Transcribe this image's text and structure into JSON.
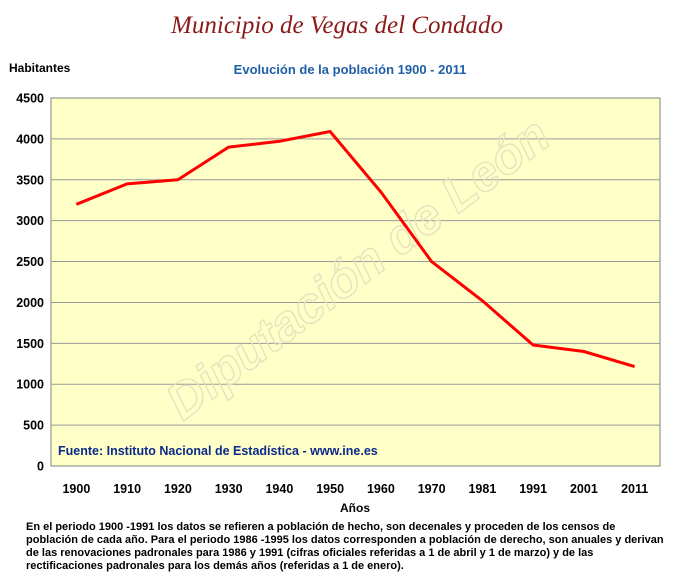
{
  "page_title": "Municipio de Vegas del Condado",
  "watermark": "Diputación de León",
  "footnote": "En el periodo 1900 -1991 los datos se refieren a población de hecho, son decenales y proceden de los censos de población de cada año. Para el periodo 1986 -1995 los datos corresponden a población de derecho, son anuales y derivan de las renovaciones padronales para 1986 y 1991 (cifras oficiales referidas a 1 de abril y 1 de marzo) y de las rectificaciones padronales para los demás años (referidas a 1 de enero).",
  "chart_data": {
    "type": "line",
    "title": "Evolución de la población 1900 - 2011",
    "xlabel": "Años",
    "ylabel": "Habitantes",
    "categories": [
      "1900",
      "1910",
      "1920",
      "1930",
      "1940",
      "1950",
      "1960",
      "1970",
      "1981",
      "1991",
      "2001",
      "2011"
    ],
    "series": [
      {
        "values": [
          3200,
          3450,
          3500,
          3900,
          3970,
          4090,
          3350,
          2500,
          2020,
          1480,
          1400,
          1215
        ]
      }
    ],
    "ylim": [
      0,
      4500
    ],
    "yticks": [
      0,
      500,
      1000,
      1500,
      2000,
      2500,
      3000,
      3500,
      4000,
      4500
    ],
    "grid": true,
    "source_note": "Fuente: Instituto Nacional de Estadística - www.ine.es",
    "colors": {
      "line": "#ff0000",
      "plot_background": "#ffffc8",
      "grid": "#999999"
    }
  }
}
